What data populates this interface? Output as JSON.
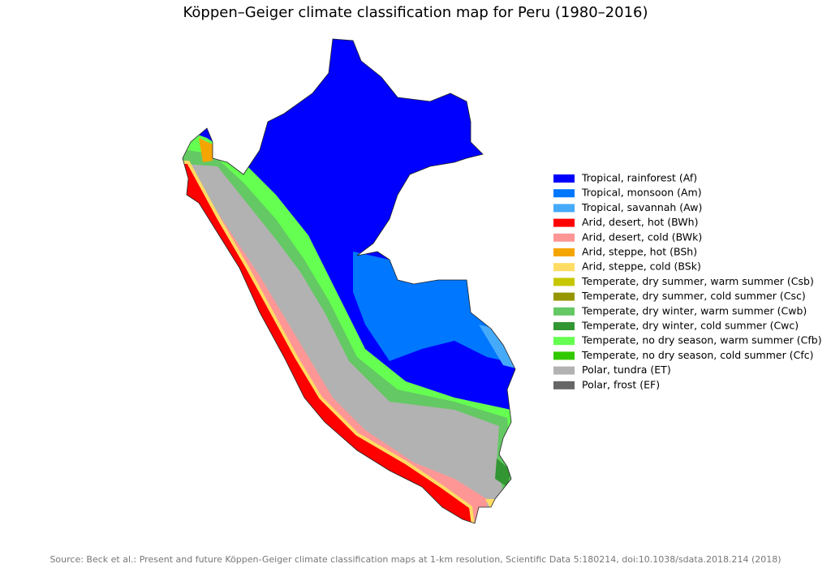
{
  "title": "Köppen–Geiger climate classification map for Peru (1980–2016)",
  "legend": {
    "items": [
      {
        "label": "Tropical, rainforest (Af)",
        "color": "#0000fe"
      },
      {
        "label": "Tropical, monsoon (Am)",
        "color": "#0077ff"
      },
      {
        "label": "Tropical, savannah (Aw)",
        "color": "#46aafa"
      },
      {
        "label": "Arid, desert, hot (BWh)",
        "color": "#fe0000"
      },
      {
        "label": "Arid, desert, cold (BWk)",
        "color": "#fe9696"
      },
      {
        "label": "Arid, steppe, hot (BSh)",
        "color": "#f5a500"
      },
      {
        "label": "Arid, steppe, cold (BSk)",
        "color": "#ffdc64"
      },
      {
        "label": "Temperate, dry summer, warm summer (Csb)",
        "color": "#c6c700"
      },
      {
        "label": "Temperate, dry summer, cold summer (Csc)",
        "color": "#969600"
      },
      {
        "label": "Temperate, dry winter, warm summer (Cwb)",
        "color": "#64c864"
      },
      {
        "label": "Temperate, dry winter, cold summer (Cwc)",
        "color": "#329632"
      },
      {
        "label": "Temperate, no dry season, warm summer (Cfb)",
        "color": "#64ff50"
      },
      {
        "label": "Temperate, no dry season, cold summer (Cfc)",
        "color": "#32c800"
      },
      {
        "label": "Polar, tundra (ET)",
        "color": "#b2b2b2"
      },
      {
        "label": "Polar, frost (EF)",
        "color": "#666666"
      }
    ]
  },
  "source": "Source: Beck et al.: Present and future Köppen-Geiger climate classification maps at 1-km resolution, Scientific Data 5:180214, doi:10.1038/sdata.2018.214 (2018)"
}
